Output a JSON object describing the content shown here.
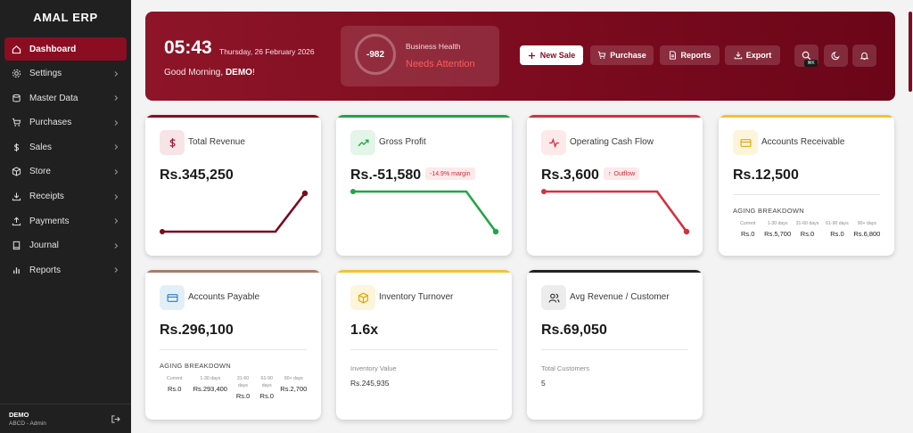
{
  "sidebar": {
    "brand": "AMAL ERP",
    "items": [
      {
        "label": "Dashboard",
        "icon": "home-icon",
        "active": true
      },
      {
        "label": "Settings",
        "icon": "gear-icon"
      },
      {
        "label": "Master Data",
        "icon": "database-icon"
      },
      {
        "label": "Purchases",
        "icon": "cart-icon"
      },
      {
        "label": "Sales",
        "icon": "dollar-icon"
      },
      {
        "label": "Store",
        "icon": "box-icon"
      },
      {
        "label": "Receipts",
        "icon": "download-icon"
      },
      {
        "label": "Payments",
        "icon": "upload-icon"
      },
      {
        "label": "Journal",
        "icon": "book-icon"
      },
      {
        "label": "Reports",
        "icon": "bar-chart-icon"
      }
    ],
    "user": {
      "name": "DEMO",
      "role": "ABCD - Admin"
    }
  },
  "header": {
    "time": "05:43",
    "date": "Thursday, 26 February 2026",
    "greeting": "Good Morning, ",
    "username": "DEMO",
    "greeting_suffix": "!",
    "health": {
      "score": "-982",
      "label": "Business Health",
      "status": "Needs Attention"
    },
    "buttons": {
      "new_sale": "New Sale",
      "purchase": "Purchase",
      "reports": "Reports",
      "export": "Export"
    },
    "shortcut": "⌘K"
  },
  "cards": {
    "revenue": {
      "title": "Total Revenue",
      "value": "Rs.345,250",
      "color": "#8b0d22"
    },
    "profit": {
      "title": "Gross Profit",
      "value": "Rs.-51,580",
      "badge": "-14.9% margin",
      "color": "#22a547"
    },
    "cashflow": {
      "title": "Operating Cash Flow",
      "value": "Rs.3,600",
      "badge": "Outflow",
      "color": "#d4313f"
    },
    "receivable": {
      "title": "Accounts Receivable",
      "value": "Rs.12,500",
      "aging_title": "AGING BREAKDOWN",
      "aging": [
        {
          "label": "Current",
          "value": "Rs.0"
        },
        {
          "label": "1-30 days",
          "value": "Rs.5,700"
        },
        {
          "label": "31-60 days",
          "value": "Rs.0"
        },
        {
          "label": "61-90 days",
          "value": "Rs.0"
        },
        {
          "label": "90+ days",
          "value": "Rs.6,800"
        }
      ]
    },
    "payable": {
      "title": "Accounts Payable",
      "value": "Rs.296,100",
      "aging_title": "AGING BREAKDOWN",
      "aging": [
        {
          "label": "Current",
          "value": "Rs.0"
        },
        {
          "label": "1-30 days",
          "value": "Rs.293,400"
        },
        {
          "label": "31-60 days",
          "value": "Rs.0"
        },
        {
          "label": "61-90 days",
          "value": "Rs.0"
        },
        {
          "label": "90+ days",
          "value": "Rs.2,700"
        }
      ]
    },
    "inventory": {
      "title": "Inventory Turnover",
      "value": "1.6x",
      "sub_label": "Inventory Value",
      "sub_value": "Rs.245,935"
    },
    "avgrev": {
      "title": "Avg Revenue / Customer",
      "value": "Rs.69,050",
      "sub_label": "Total Customers",
      "sub_value": "5"
    }
  }
}
